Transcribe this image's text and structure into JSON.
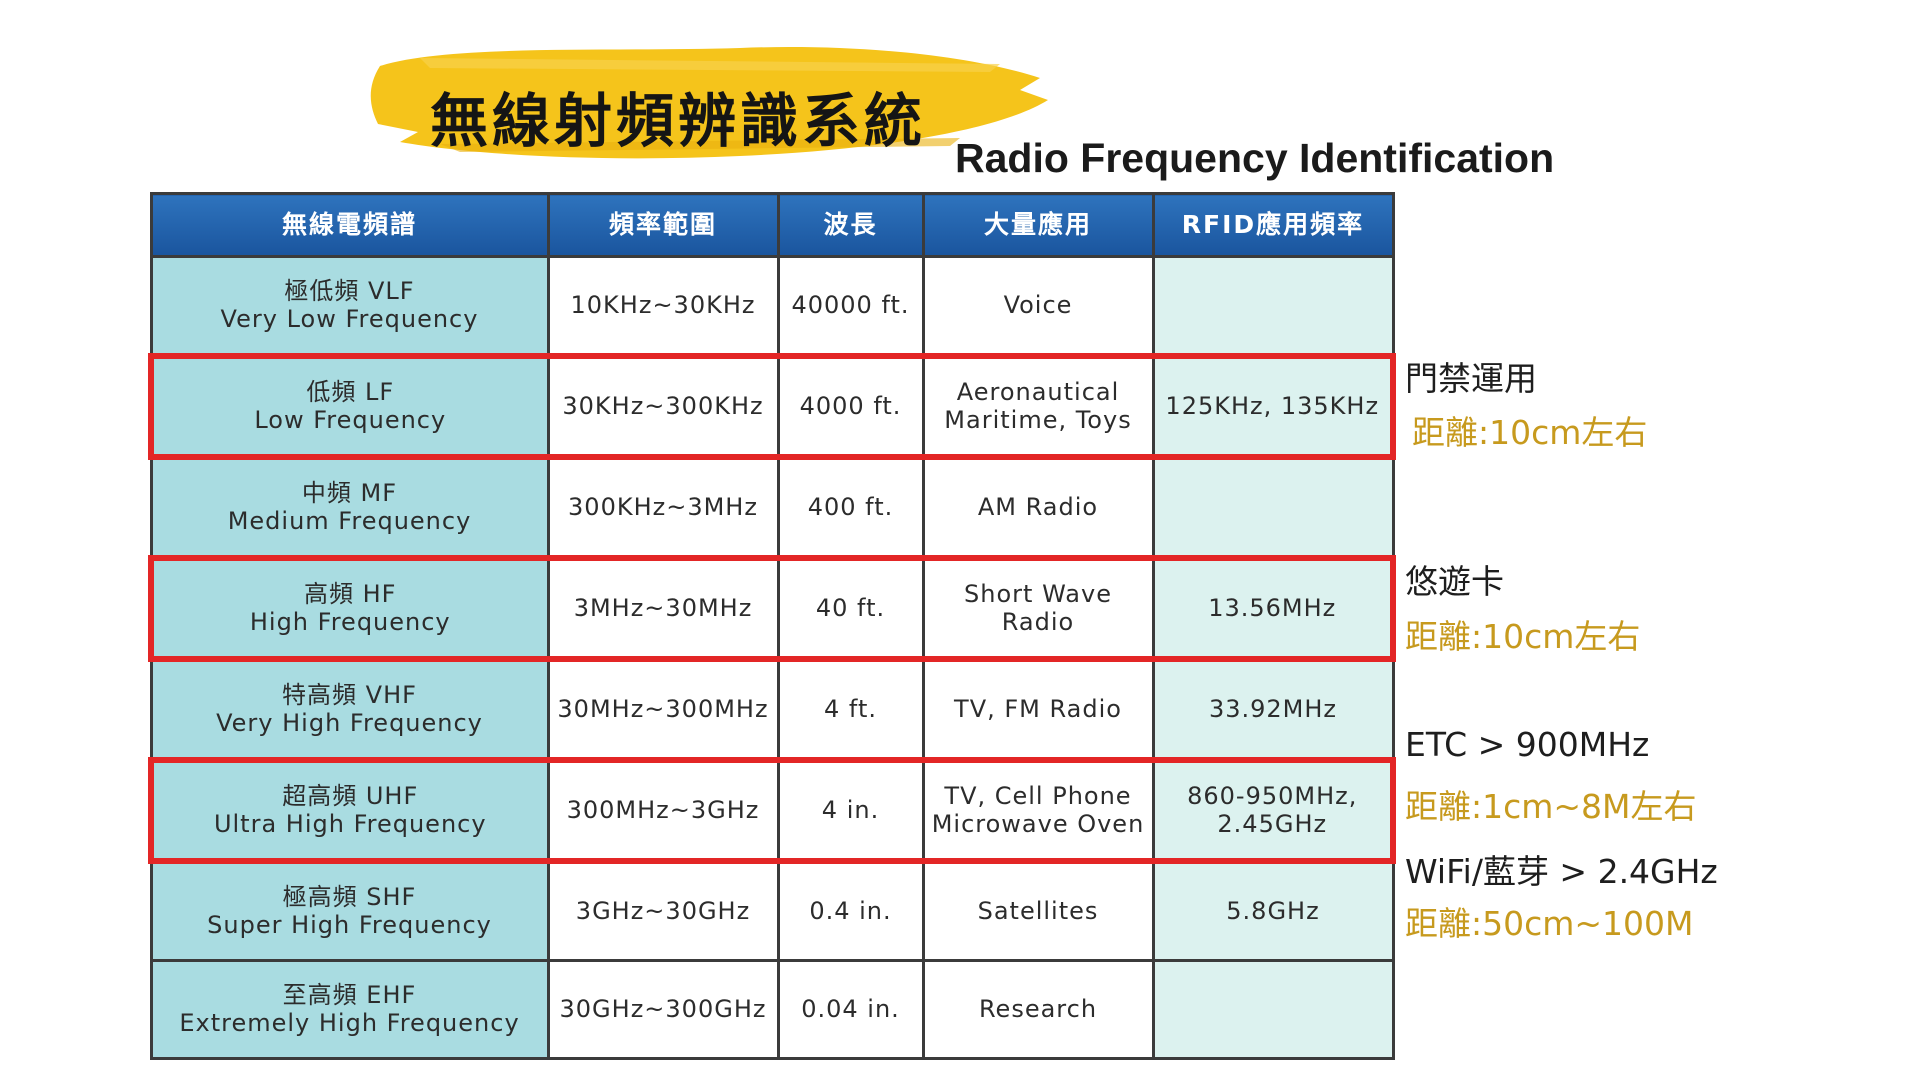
{
  "title": {
    "chinese": "無線射頻辨識系統",
    "english": "Radio Frequency Identification",
    "highlight_color": "#f5c41b"
  },
  "table": {
    "headers": [
      "無線電頻譜",
      "頻率範圍",
      "波長",
      "大量應用",
      "RFID應用頻率"
    ],
    "rows": [
      {
        "band_cn": "極低頻 VLF",
        "band_en": "Very Low Frequency",
        "range": "10KHz~30KHz",
        "wavelength": "40000 ft.",
        "application": "Voice",
        "rfid": "",
        "highlighted": false
      },
      {
        "band_cn": "低頻 LF",
        "band_en": "Low Frequency",
        "range": "30KHz~300KHz",
        "wavelength": "4000 ft.",
        "application": "Aeronautical Maritime, Toys",
        "rfid": "125KHz, 135KHz",
        "highlighted": true
      },
      {
        "band_cn": "中頻 MF",
        "band_en": "Medium Frequency",
        "range": "300KHz~3MHz",
        "wavelength": "400 ft.",
        "application": "AM Radio",
        "rfid": "",
        "highlighted": false
      },
      {
        "band_cn": "高頻 HF",
        "band_en": "High Frequency",
        "range": "3MHz~30MHz",
        "wavelength": "40 ft.",
        "application": "Short Wave Radio",
        "rfid": "13.56MHz",
        "highlighted": true
      },
      {
        "band_cn": "特高頻 VHF",
        "band_en": "Very High Frequency",
        "range": "30MHz~300MHz",
        "wavelength": "4 ft.",
        "application": "TV, FM Radio",
        "rfid": "33.92MHz",
        "highlighted": false
      },
      {
        "band_cn": "超高頻 UHF",
        "band_en": "Ultra High Frequency",
        "range": "300MHz~3GHz",
        "wavelength": "4 in.",
        "application": "TV, Cell Phone Microwave Oven",
        "rfid": "860-950MHz, 2.45GHz",
        "highlighted": true
      },
      {
        "band_cn": "極高頻 SHF",
        "band_en": "Super High Frequency",
        "range": "3GHz~30GHz",
        "wavelength": "0.4 in.",
        "application": "Satellites",
        "rfid": "5.8GHz",
        "highlighted": false
      },
      {
        "band_cn": "至高頻 EHF",
        "band_en": "Extremely High Frequency",
        "range": "30GHz~300GHz",
        "wavelength": "0.04 in.",
        "application": "Research",
        "rfid": "",
        "highlighted": false
      }
    ]
  },
  "notes": {
    "lf_use": "門禁運用",
    "lf_distance": "距離:10cm左右",
    "hf_use": "悠遊卡",
    "hf_distance": "距離:10cm左右",
    "uhf_etc": "ETC > 900MHz",
    "uhf_etc_distance": "距離:1cm~8M左右",
    "uhf_wifi": "WiFi/藍芽 > 2.4GHz",
    "uhf_wifi_distance": "距離:50cm~100M"
  },
  "colors": {
    "header_blue": "#1f5fa8",
    "band_cell": "#a9dce1",
    "rfid_cell": "#dcf2ef",
    "highlight_red": "#e32626",
    "note_gold": "#c79a1e"
  }
}
